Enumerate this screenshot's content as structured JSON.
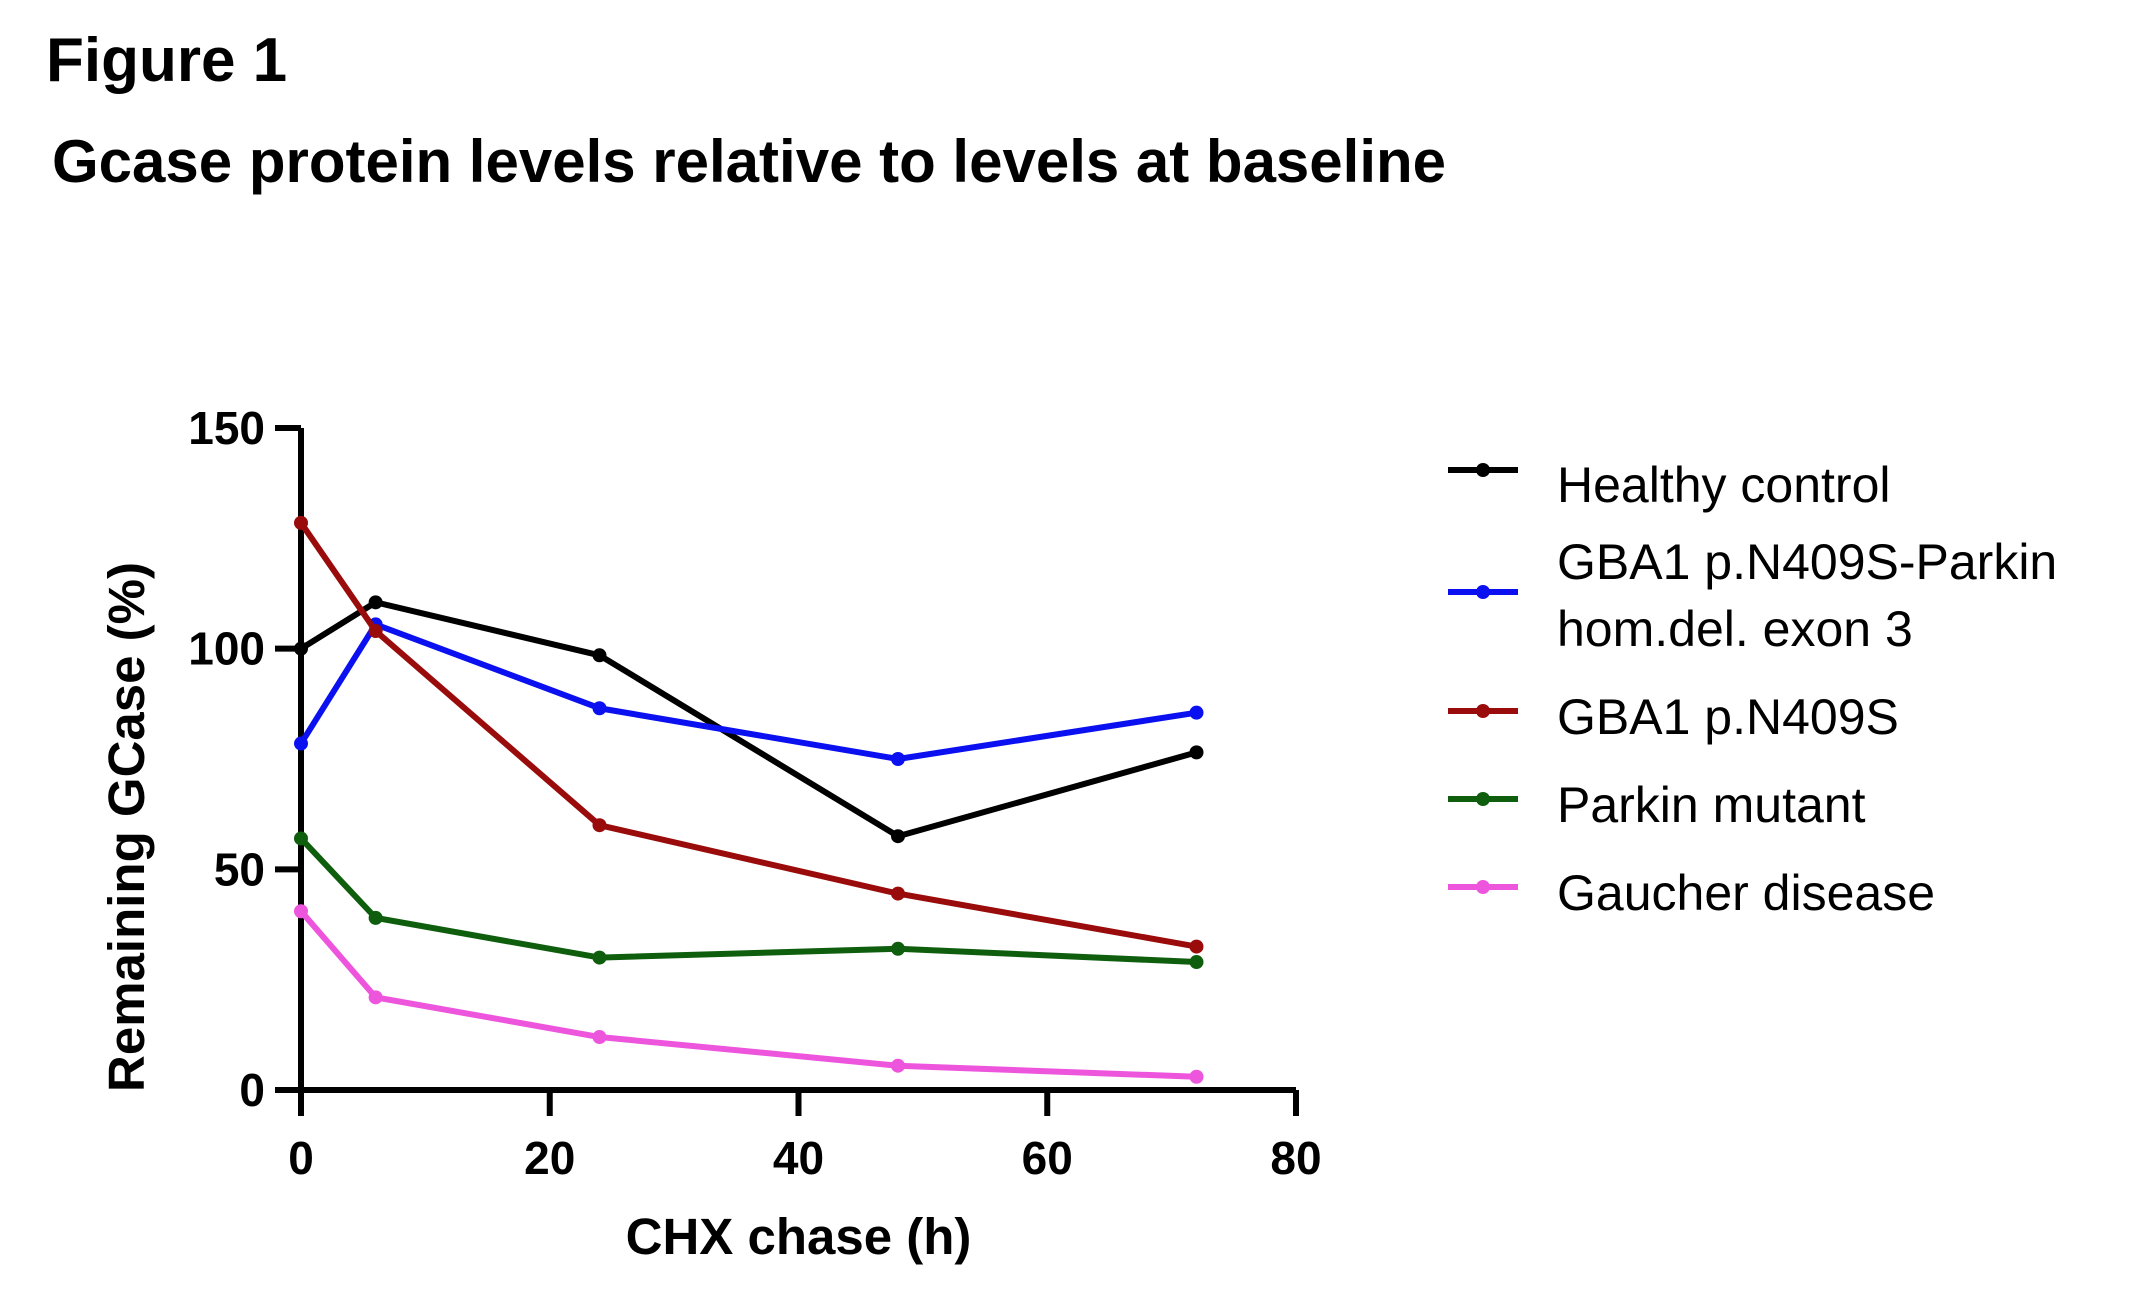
{
  "figure_label": "Figure 1",
  "title": "Gcase protein levels relative to levels at baseline",
  "chart_data": {
    "type": "line",
    "xlabel": "CHX chase (h)",
    "ylabel": "Remaining GCase (%)",
    "xlim": [
      0,
      80
    ],
    "ylim": [
      0,
      150
    ],
    "xticks": [
      0,
      20,
      40,
      60,
      80
    ],
    "yticks": [
      0,
      50,
      100,
      150
    ],
    "grid": false,
    "legend_position": "right",
    "series": [
      {
        "name": "Healthy control",
        "color": "#000000",
        "x": [
          0,
          6,
          24,
          48,
          72
        ],
        "y": [
          100,
          110.5,
          98.5,
          57.5,
          76.5
        ]
      },
      {
        "name": "GBA1 p.N409S-Parkin hom.del. exon 3",
        "legend_lines": [
          "GBA1 p.N409S-Parkin",
          "hom.del. exon 3"
        ],
        "color": "#0a10f0",
        "x": [
          0,
          6,
          24,
          48,
          72
        ],
        "y": [
          78.5,
          105.5,
          86.5,
          75,
          85.5
        ]
      },
      {
        "name": "GBA1 p.N409S",
        "color": "#9a0b0b",
        "x": [
          0,
          6,
          24,
          48,
          72
        ],
        "y": [
          128.5,
          104,
          60,
          44.5,
          32.5
        ]
      },
      {
        "name": "Parkin mutant",
        "color": "#0e5e0e",
        "x": [
          0,
          6,
          24,
          48,
          72
        ],
        "y": [
          57,
          39,
          30,
          32,
          29
        ]
      },
      {
        "name": "Gaucher disease",
        "color": "#ee55dd",
        "x": [
          0,
          6,
          24,
          48,
          72
        ],
        "y": [
          40.5,
          21,
          12,
          5.5,
          3
        ]
      }
    ]
  }
}
